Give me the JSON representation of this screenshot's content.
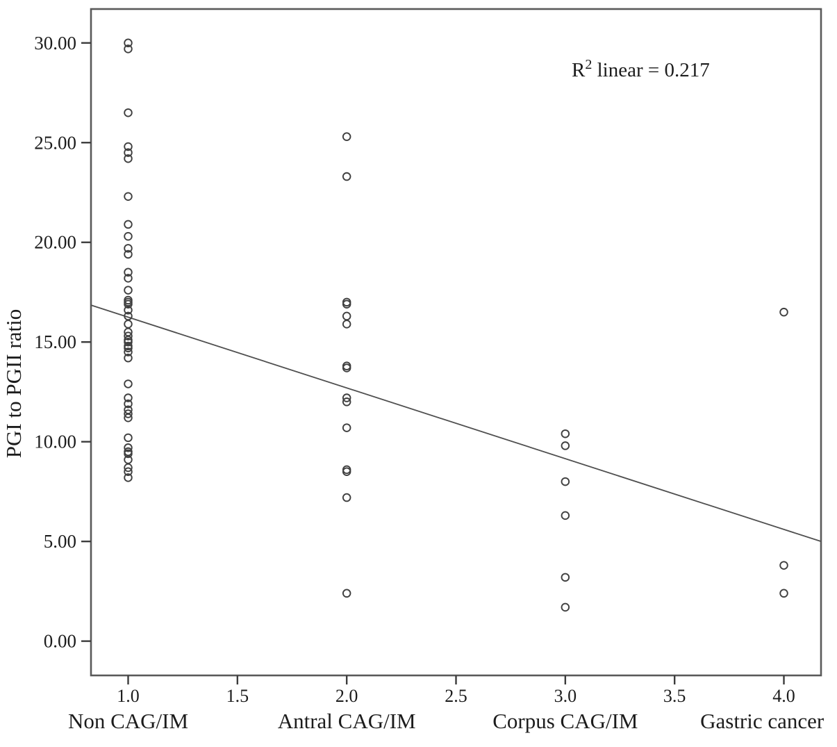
{
  "figure": {
    "y_axis_title": "PGI to PGII ratio",
    "annotation": {
      "base": "R",
      "superscript": "2",
      "rest": " linear = 0.217"
    }
  },
  "colors": {
    "background": "#ffffff",
    "frame": "#595959",
    "tick": "#3c3c3c",
    "marker_stroke": "#3f3f3f",
    "trendline": "#4f4f4f",
    "text": "#1c1c1c"
  },
  "chart_data": {
    "type": "scatter",
    "title": "",
    "xlabel": "",
    "ylabel": "PGI to PGII ratio",
    "grid": false,
    "legend": "none",
    "marker": "open-circle",
    "xlim": [
      0.83,
      4.17
    ],
    "ylim": [
      -1.72,
      31.7
    ],
    "x_ticks": {
      "values": [
        1.0,
        1.5,
        2.0,
        2.5,
        3.0,
        3.5,
        4.0
      ],
      "labels": [
        "1.0",
        "1.5",
        "2.0",
        "2.5",
        "3.0",
        "3.5",
        "4.0"
      ]
    },
    "y_ticks": {
      "values": [
        0,
        5,
        10,
        15,
        20,
        25,
        30
      ],
      "labels": [
        "0.00",
        "5.00",
        "10.00",
        "15.00",
        "20.00",
        "25.00",
        "30.00"
      ]
    },
    "groups": [
      {
        "label": "Non CAG/IM",
        "x": 1.0,
        "values": [
          30.0,
          29.7,
          26.5,
          24.8,
          24.5,
          24.2,
          22.3,
          20.9,
          20.3,
          19.7,
          19.4,
          18.5,
          18.2,
          17.6,
          17.1,
          17.0,
          16.9,
          16.6,
          16.3,
          15.9,
          15.5,
          15.3,
          15.1,
          15.0,
          14.8,
          14.7,
          14.5,
          14.2,
          12.9,
          12.2,
          11.9,
          11.6,
          11.4,
          11.2,
          10.2,
          9.7,
          9.5,
          9.4,
          9.1,
          8.7,
          8.5,
          8.2
        ]
      },
      {
        "label": "Antral CAG/IM",
        "x": 2.0,
        "values": [
          25.3,
          23.3,
          17.0,
          16.9,
          16.3,
          15.9,
          13.8,
          13.7,
          12.2,
          12.0,
          10.7,
          8.6,
          8.5,
          7.2,
          2.4
        ]
      },
      {
        "label": "Corpus CAG/IM",
        "x": 3.0,
        "values": [
          10.4,
          9.8,
          8.0,
          6.3,
          3.2,
          1.7
        ]
      },
      {
        "label": "Gastric cancer",
        "x": 4.0,
        "values": [
          16.5,
          3.8,
          2.4
        ]
      }
    ],
    "trendline": {
      "type": "linear",
      "r_squared": 0.217,
      "x1": 0.83,
      "y1": 16.85,
      "x2": 4.17,
      "y2": 5.0
    },
    "annotation_text": "R² linear = 0.217"
  }
}
